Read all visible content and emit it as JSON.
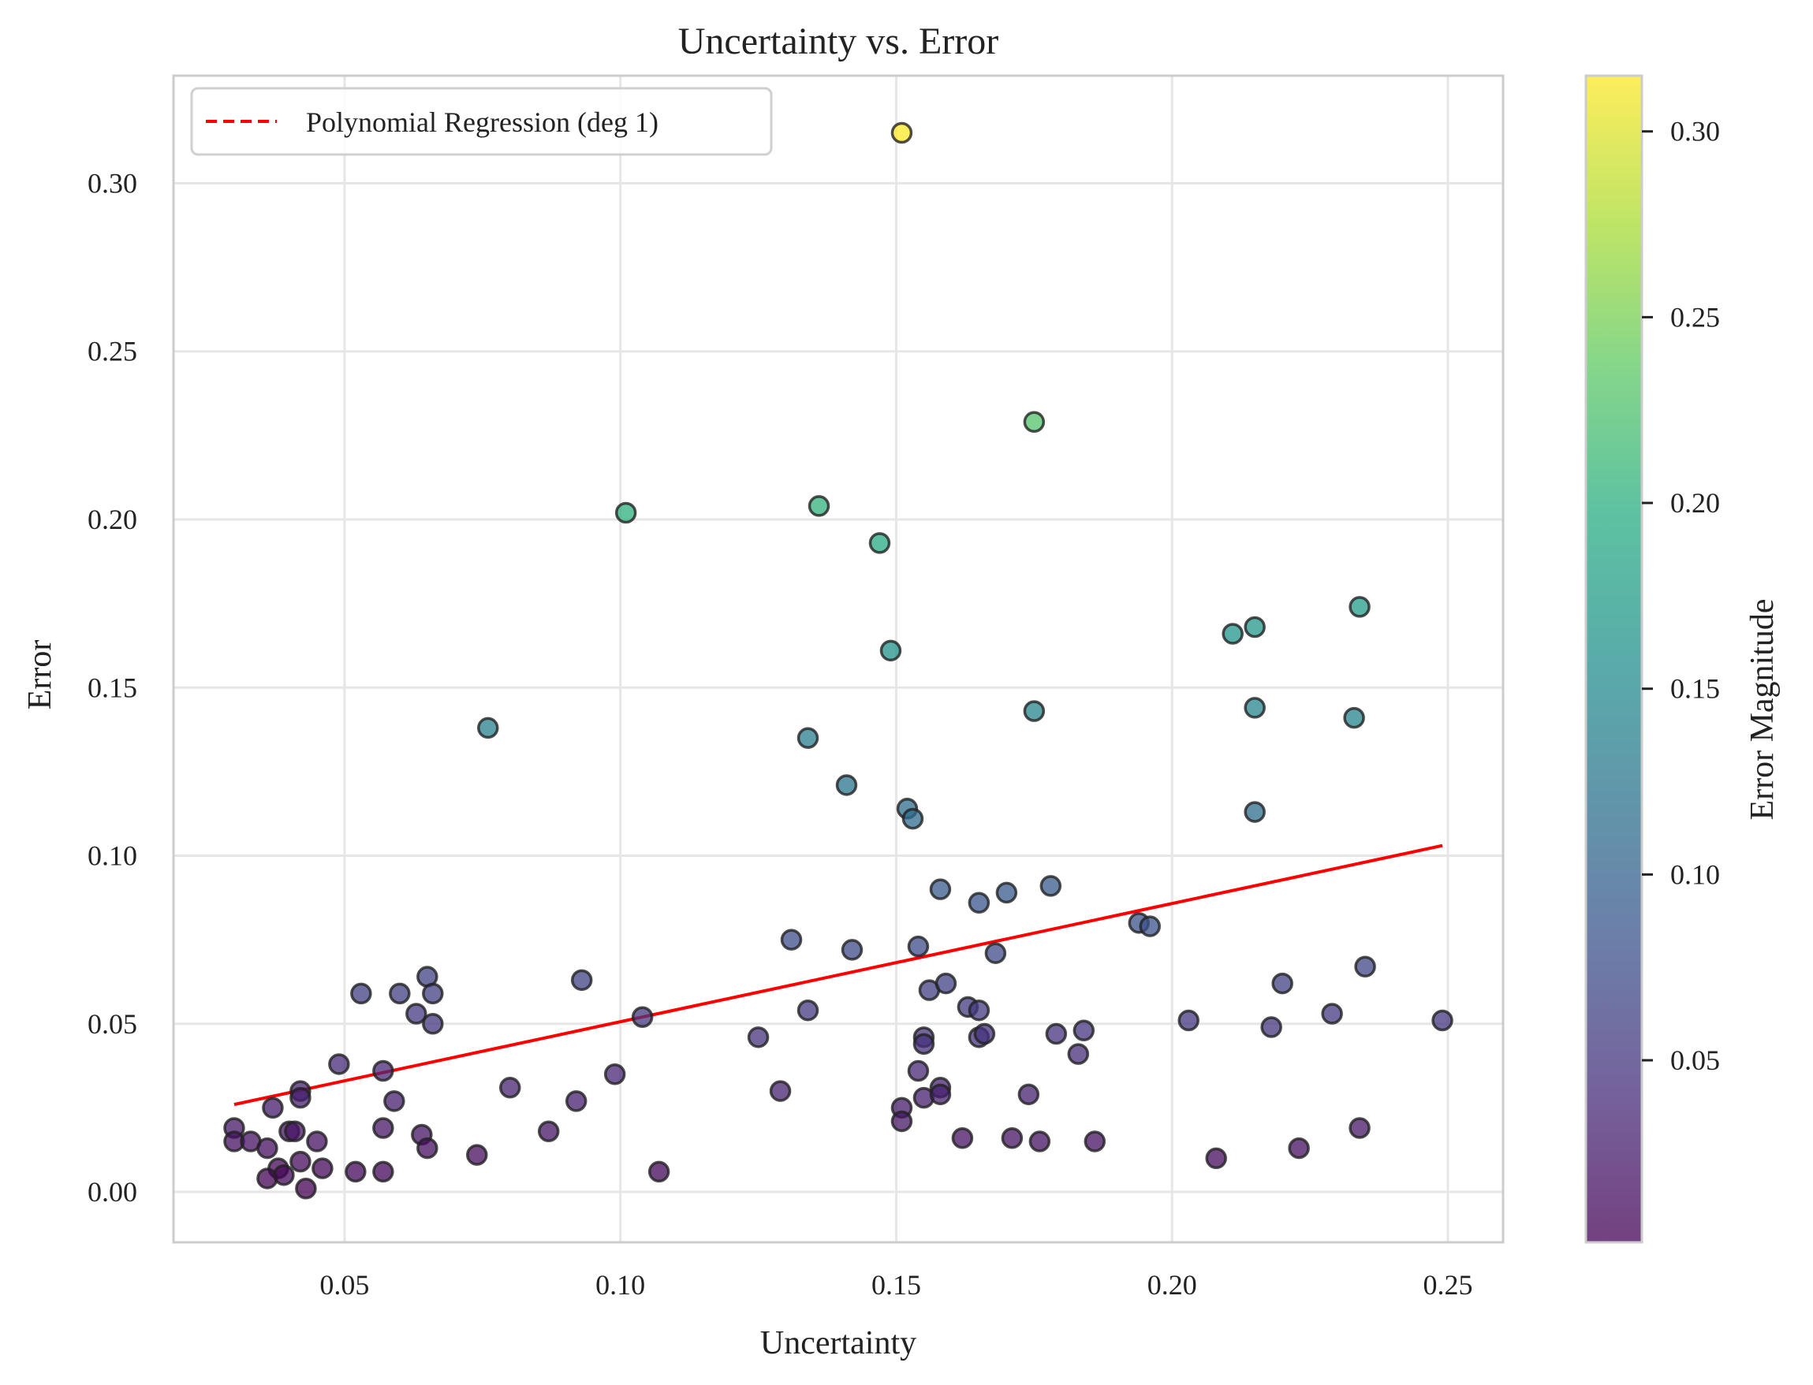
{
  "chart_data": {
    "type": "scatter",
    "title": "Uncertainty vs. Error",
    "xlabel": "Uncertainty",
    "ylabel": "Error",
    "xlim": [
      0.019,
      0.26
    ],
    "ylim": [
      -0.015,
      0.332
    ],
    "xticks": [
      {
        "value": 0.05,
        "label": "0.05"
      },
      {
        "value": 0.1,
        "label": "0.10"
      },
      {
        "value": 0.15,
        "label": "0.15"
      },
      {
        "value": 0.2,
        "label": "0.20"
      },
      {
        "value": 0.25,
        "label": "0.25"
      }
    ],
    "yticks": [
      {
        "value": 0.0,
        "label": "0.00"
      },
      {
        "value": 0.05,
        "label": "0.05"
      },
      {
        "value": 0.1,
        "label": "0.10"
      },
      {
        "value": 0.15,
        "label": "0.15"
      },
      {
        "value": 0.2,
        "label": "0.20"
      },
      {
        "value": 0.25,
        "label": "0.25"
      },
      {
        "value": 0.3,
        "label": "0.30"
      }
    ],
    "grid": true,
    "legend": {
      "position": "top-left",
      "entries": [
        {
          "label": "Polynomial Regression (deg 1)",
          "color": "#ff0000",
          "style": "dashed"
        }
      ]
    },
    "colormap": "viridis",
    "colorbar": {
      "label": "Error Magnitude",
      "range": [
        0.001,
        0.315
      ],
      "ticks": [
        {
          "value": 0.05,
          "label": "0.05"
        },
        {
          "value": 0.1,
          "label": "0.10"
        },
        {
          "value": 0.15,
          "label": "0.15"
        },
        {
          "value": 0.2,
          "label": "0.20"
        },
        {
          "value": 0.25,
          "label": "0.25"
        },
        {
          "value": 0.3,
          "label": "0.30"
        }
      ]
    },
    "regression": {
      "x": [
        0.03,
        0.249
      ],
      "y": [
        0.026,
        0.103
      ],
      "color": "#ff0000"
    },
    "series": [
      {
        "points": [
          [
            0.151,
            0.315
          ],
          [
            0.175,
            0.229
          ],
          [
            0.101,
            0.202
          ],
          [
            0.136,
            0.204
          ],
          [
            0.147,
            0.193
          ],
          [
            0.149,
            0.161
          ],
          [
            0.076,
            0.138
          ],
          [
            0.134,
            0.135
          ],
          [
            0.175,
            0.143
          ],
          [
            0.141,
            0.121
          ],
          [
            0.152,
            0.114
          ],
          [
            0.153,
            0.111
          ],
          [
            0.211,
            0.166
          ],
          [
            0.215,
            0.168
          ],
          [
            0.234,
            0.174
          ],
          [
            0.215,
            0.144
          ],
          [
            0.233,
            0.141
          ],
          [
            0.215,
            0.113
          ],
          [
            0.158,
            0.09
          ],
          [
            0.165,
            0.086
          ],
          [
            0.17,
            0.089
          ],
          [
            0.178,
            0.091
          ],
          [
            0.194,
            0.08
          ],
          [
            0.196,
            0.079
          ],
          [
            0.131,
            0.075
          ],
          [
            0.142,
            0.072
          ],
          [
            0.154,
            0.073
          ],
          [
            0.168,
            0.071
          ],
          [
            0.235,
            0.067
          ],
          [
            0.093,
            0.063
          ],
          [
            0.053,
            0.059
          ],
          [
            0.06,
            0.059
          ],
          [
            0.065,
            0.064
          ],
          [
            0.066,
            0.059
          ],
          [
            0.063,
            0.053
          ],
          [
            0.066,
            0.05
          ],
          [
            0.134,
            0.054
          ],
          [
            0.104,
            0.052
          ],
          [
            0.125,
            0.046
          ],
          [
            0.156,
            0.06
          ],
          [
            0.159,
            0.062
          ],
          [
            0.163,
            0.055
          ],
          [
            0.165,
            0.054
          ],
          [
            0.155,
            0.046
          ],
          [
            0.155,
            0.044
          ],
          [
            0.165,
            0.046
          ],
          [
            0.166,
            0.047
          ],
          [
            0.179,
            0.047
          ],
          [
            0.184,
            0.048
          ],
          [
            0.183,
            0.041
          ],
          [
            0.203,
            0.051
          ],
          [
            0.218,
            0.049
          ],
          [
            0.22,
            0.062
          ],
          [
            0.229,
            0.053
          ],
          [
            0.249,
            0.051
          ],
          [
            0.049,
            0.038
          ],
          [
            0.057,
            0.036
          ],
          [
            0.059,
            0.027
          ],
          [
            0.042,
            0.03
          ],
          [
            0.042,
            0.028
          ],
          [
            0.037,
            0.025
          ],
          [
            0.08,
            0.031
          ],
          [
            0.099,
            0.035
          ],
          [
            0.092,
            0.027
          ],
          [
            0.129,
            0.03
          ],
          [
            0.154,
            0.036
          ],
          [
            0.155,
            0.028
          ],
          [
            0.158,
            0.031
          ],
          [
            0.158,
            0.029
          ],
          [
            0.151,
            0.025
          ],
          [
            0.151,
            0.021
          ],
          [
            0.174,
            0.029
          ],
          [
            0.03,
            0.019
          ],
          [
            0.03,
            0.015
          ],
          [
            0.033,
            0.015
          ],
          [
            0.036,
            0.013
          ],
          [
            0.04,
            0.018
          ],
          [
            0.041,
            0.018
          ],
          [
            0.045,
            0.015
          ],
          [
            0.042,
            0.009
          ],
          [
            0.038,
            0.007
          ],
          [
            0.036,
            0.004
          ],
          [
            0.039,
            0.005
          ],
          [
            0.043,
            0.001
          ],
          [
            0.046,
            0.007
          ],
          [
            0.052,
            0.006
          ],
          [
            0.057,
            0.006
          ],
          [
            0.057,
            0.019
          ],
          [
            0.064,
            0.017
          ],
          [
            0.065,
            0.013
          ],
          [
            0.074,
            0.011
          ],
          [
            0.087,
            0.018
          ],
          [
            0.107,
            0.006
          ],
          [
            0.162,
            0.016
          ],
          [
            0.171,
            0.016
          ],
          [
            0.176,
            0.015
          ],
          [
            0.186,
            0.015
          ],
          [
            0.208,
            0.01
          ],
          [
            0.223,
            0.013
          ],
          [
            0.234,
            0.019
          ]
        ]
      }
    ]
  }
}
